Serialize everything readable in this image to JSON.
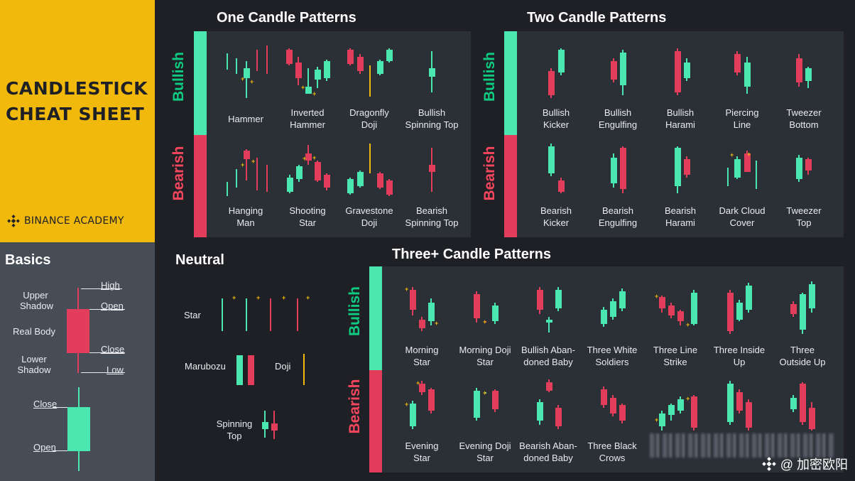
{
  "title_line1": "CANDLESTICK",
  "title_line2": "CHEAT SHEET",
  "brand": "BINANCE ACADEMY",
  "basics": {
    "title": "Basics",
    "upper_shadow": "Upper\nShadow",
    "real_body": "Real Body",
    "lower_shadow": "Lower\nShadow",
    "high": "High",
    "open_red": "Open",
    "close_red": "Close",
    "low": "Low",
    "close_green": "Close",
    "open_green": "Open"
  },
  "sections": {
    "one": "One Candle Patterns",
    "two": "Two Candle Patterns",
    "neutral": "Neutral",
    "three": "Three+ Candle Patterns",
    "bullish": "Bullish",
    "bearish": "Bearish"
  },
  "one_bull": [
    "Hammer",
    "Inverted\nHammer",
    "Dragonfly\nDoji",
    "Bullish\nSpinning Top"
  ],
  "one_bear": [
    "Hanging\nMan",
    "Shooting\nStar",
    "Gravestone\nDoji",
    "Bearish\nSpinning Top"
  ],
  "two_bull": [
    "Bullish\nKicker",
    "Bullish\nEngulfing",
    "Bullish\nHarami",
    "Piercing\nLine",
    "Tweezer\nBottom"
  ],
  "two_bear": [
    "Bearish\nKicker",
    "Bearish\nEngulfing",
    "Bearish\nHarami",
    "Dark Cloud\nCover",
    "Tweezer\nTop"
  ],
  "neutral": {
    "star": "Star",
    "marubozu": "Marubozu",
    "doji": "Doji",
    "spinning": "Spinning\nTop"
  },
  "three_bull": [
    "Morning\nStar",
    "Morning Doji\nStar",
    "Bullish Aban-\ndoned Baby",
    "Three White\nSoldiers",
    "Three Line\nStrike",
    "Three Inside\nUp",
    "Three\nOutside Up"
  ],
  "three_bear": [
    "Evening\nStar",
    "Evening Doji\nStar",
    "Bearish Aban-\ndoned Baby",
    "Three Black\nCrows"
  ],
  "watermark": "@ 加密欧阳",
  "colors": {
    "bull": "#4ae7b1",
    "bear": "#e23e5c",
    "accent": "#f0b90b",
    "panel": "#2b2f36",
    "bg": "#1e2026"
  }
}
